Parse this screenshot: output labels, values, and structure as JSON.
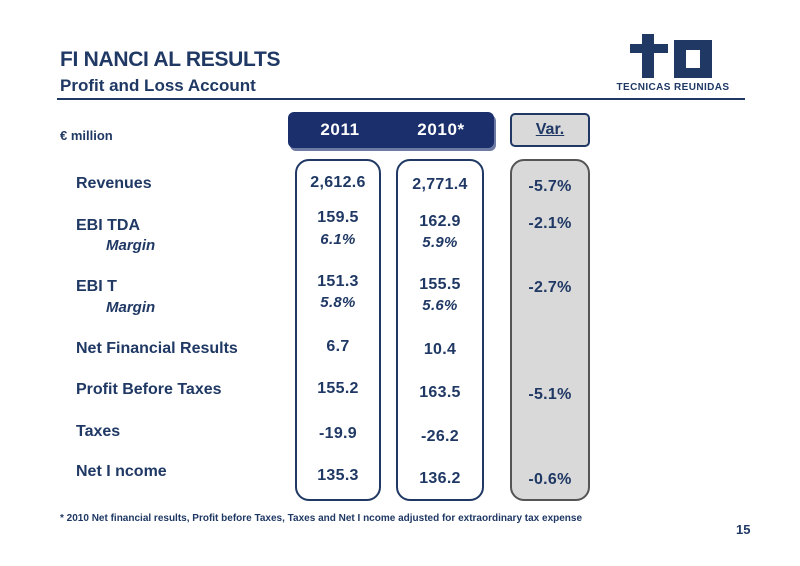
{
  "header": {
    "title": "FI NANCI AL RESULTS",
    "subtitle": "Profit and Loss Account",
    "logo_text": "TECNICAS REUNIDAS"
  },
  "table": {
    "unit": "€ million",
    "columns": {
      "y2011": "2011",
      "y2010": "2010*",
      "var": "Var."
    },
    "rows": {
      "revenues": {
        "label": "Revenues",
        "y2011": "2,612.6",
        "y2010": "2,771.4",
        "var": "-5.7%"
      },
      "ebitda": {
        "label": "EBI TDA",
        "y2011": "159.5",
        "y2010": "162.9",
        "var": "-2.1%"
      },
      "ebitda_margin": {
        "label": "Margin",
        "y2011": "6.1%",
        "y2010": "5.9%"
      },
      "ebit": {
        "label": "EBI T",
        "y2011": "151.3",
        "y2010": "155.5",
        "var": "-2.7%"
      },
      "ebit_margin": {
        "label": "Margin",
        "y2011": "5.8%",
        "y2010": "5.6%"
      },
      "net_financial": {
        "label": "Net Financial Results",
        "y2011": "6.7",
        "y2010": "10.4"
      },
      "pbt": {
        "label": "Profit Before Taxes",
        "y2011": "155.2",
        "y2010": "163.5",
        "var": "-5.1%"
      },
      "taxes": {
        "label": "Taxes",
        "y2011": "-19.9",
        "y2010": "-26.2"
      },
      "net_income": {
        "label": "Net I ncome",
        "y2011": "135.3",
        "y2010": "136.2",
        "var": "-0.6%"
      }
    }
  },
  "footnote": "* 2010 Net financial results, Profit before Taxes, Taxes and Net I ncome adjusted for extraordinary tax expense",
  "page_number": "15",
  "colors": {
    "navy": "#1a2f6b",
    "text": "#1f3864",
    "var_bg": "#d9d9d9"
  }
}
